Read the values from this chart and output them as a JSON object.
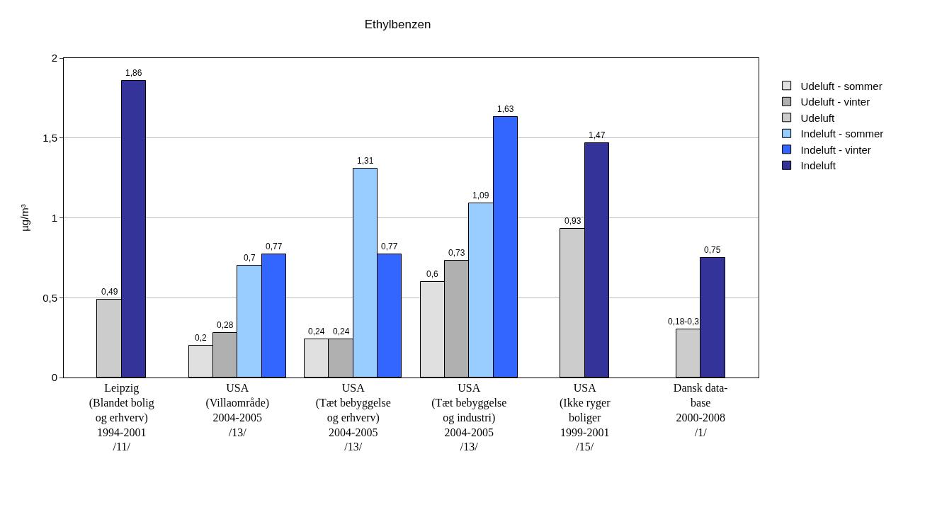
{
  "chart_data": {
    "type": "bar",
    "title": "Ethylbenzen",
    "ylabel": "µg/m³",
    "categories": [
      "Leipzig\n(Blandet bolig\nog erhverv)\n1994-2001\n/11/",
      "USA\n(Villaområde)\n2004-2005\n/13/",
      "USA\n(Tæt bebyggelse\nog erhverv)\n2004-2005\n/13/",
      "USA\n(Tæt bebyggelse\nog industri)\n2004-2005\n/13/",
      "USA\n(Ikke ryger\nboliger\n1999-2001\n/15/",
      "Dansk data-\nbase\n2000-2008\n/1/"
    ],
    "series": [
      {
        "name": "Udeluft - sommer",
        "color": "#e0e0e0",
        "values": [
          null,
          0.2,
          0.24,
          0.6,
          null,
          null
        ],
        "value_labels": [
          null,
          "0,2",
          "0,24",
          "0,6",
          null,
          null
        ]
      },
      {
        "name": "Udeluft - vinter",
        "color": "#b0b0b0",
        "values": [
          null,
          0.28,
          0.24,
          0.73,
          null,
          null
        ],
        "value_labels": [
          null,
          "0,28",
          "0,24",
          "0,73",
          null,
          null
        ]
      },
      {
        "name": "Udeluft",
        "color": "#cccccc",
        "values": [
          0.49,
          null,
          null,
          null,
          0.93,
          0.3
        ],
        "value_labels": [
          "0,49",
          null,
          null,
          null,
          "0,93",
          "0,18-0,3"
        ]
      },
      {
        "name": "Indeluft - sommer",
        "color": "#99ccff",
        "values": [
          null,
          0.7,
          1.31,
          1.09,
          null,
          null
        ],
        "value_labels": [
          null,
          "0,7",
          "1,31",
          "1,09",
          null,
          null
        ]
      },
      {
        "name": "Indeluft - vinter",
        "color": "#3366ff",
        "values": [
          null,
          0.77,
          0.77,
          1.63,
          null,
          null
        ],
        "value_labels": [
          null,
          "0,77",
          "0,77",
          "1,63",
          null,
          null
        ]
      },
      {
        "name": "Indeluft",
        "color": "#333399",
        "values": [
          1.86,
          null,
          null,
          null,
          1.47,
          0.75
        ],
        "value_labels": [
          "1,86",
          null,
          null,
          null,
          "1,47",
          "0,75"
        ]
      }
    ],
    "ylim": [
      0,
      2
    ],
    "yticks": [
      0,
      {
        "value": 0.5,
        "label": "0,5"
      },
      1,
      {
        "value": 1.5,
        "label": "1,5"
      },
      2
    ],
    "grid": "y",
    "legend": "right"
  }
}
